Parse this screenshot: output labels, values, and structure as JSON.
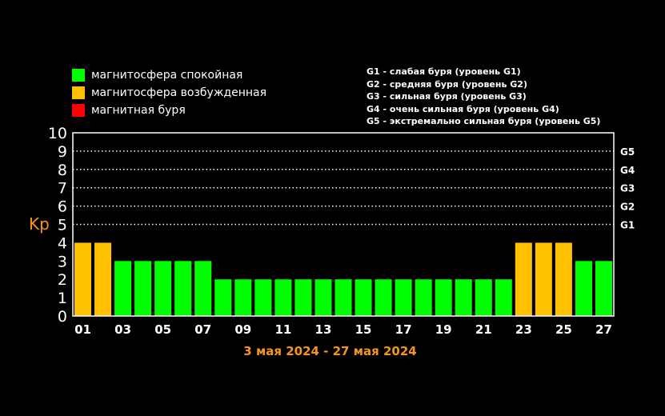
{
  "legend": [
    {
      "label": "магнитосфера спокойная",
      "color": "#00ff00"
    },
    {
      "label": "магнитосфера возбужденная",
      "color": "#ffc000"
    },
    {
      "label": "магнитная буря",
      "color": "#ff0000"
    }
  ],
  "g_legend": [
    "G1 - слабая буря (уровень G1)",
    "G2 - средняя буря (уровень G2)",
    "G3 - сильная буря (уровень G3)",
    "G4 - очень сильная буря (уровень G4)",
    "G5 - экстремально сильная буря (уровень G5)"
  ],
  "period": "3 мая 2024 - 27 мая 2024",
  "chart_data": {
    "type": "bar",
    "ylabel": "Kp",
    "ylim": [
      0,
      10
    ],
    "yticks": [
      "0",
      "1",
      "2",
      "3",
      "4",
      "5",
      "6",
      "7",
      "8",
      "9",
      "10"
    ],
    "right_ticks": [
      {
        "label": "G1",
        "value": 5
      },
      {
        "label": "G2",
        "value": 6
      },
      {
        "label": "G3",
        "value": 7
      },
      {
        "label": "G4",
        "value": 8
      },
      {
        "label": "G5",
        "value": 9
      }
    ],
    "grid": "dotted horizontal lines at levels 5 to 9",
    "xticks": [
      "01",
      "03",
      "05",
      "07",
      "09",
      "11",
      "13",
      "15",
      "17",
      "19",
      "21",
      "23",
      "25",
      "27"
    ],
    "values": [
      4,
      4,
      3,
      3,
      3,
      3,
      3,
      2,
      2,
      2,
      2,
      2,
      2,
      2,
      2,
      2,
      2,
      2,
      2,
      2,
      2,
      2,
      4,
      4,
      4,
      3,
      3
    ],
    "colors": [
      "#ffc000",
      "#ffc000",
      "#00ff00",
      "#00ff00",
      "#00ff00",
      "#00ff00",
      "#00ff00",
      "#00ff00",
      "#00ff00",
      "#00ff00",
      "#00ff00",
      "#00ff00",
      "#00ff00",
      "#00ff00",
      "#00ff00",
      "#00ff00",
      "#00ff00",
      "#00ff00",
      "#00ff00",
      "#00ff00",
      "#00ff00",
      "#00ff00",
      "#ffc000",
      "#ffc000",
      "#ffc000",
      "#00ff00",
      "#00ff00"
    ]
  }
}
